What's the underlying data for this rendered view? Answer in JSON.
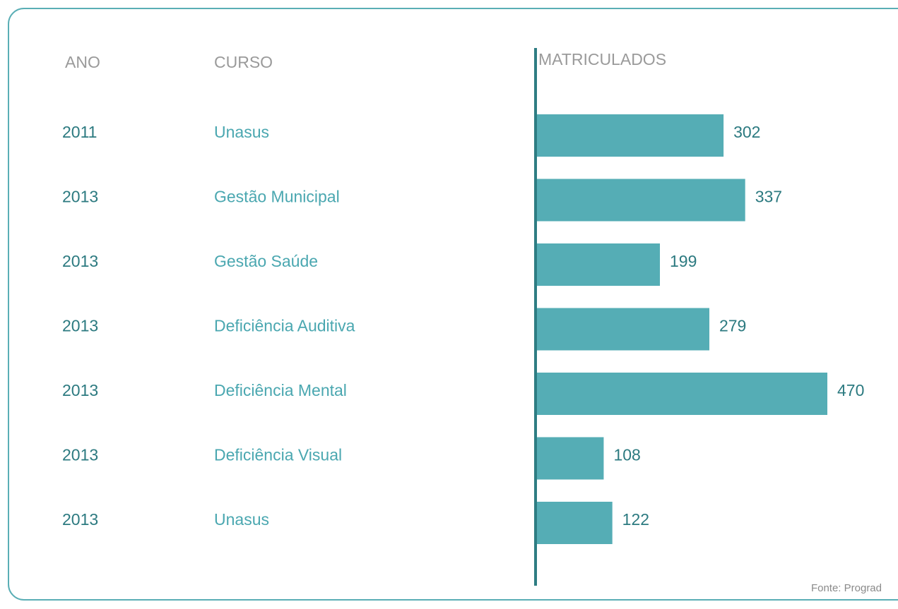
{
  "chart_data": {
    "type": "bar",
    "orientation": "horizontal",
    "headers": [
      "ANO",
      "CURSO",
      "MATRICULADOS"
    ],
    "years": [
      "2011",
      "2013",
      "2013",
      "2013",
      "2013",
      "2013",
      "2013"
    ],
    "categories": [
      "Unasus",
      "Gestão Municipal",
      "Gestão Saúde",
      "Deficiência Auditiva",
      "Deficiência Mental",
      "Deficiência Visual",
      "Unasus"
    ],
    "values": [
      302,
      337,
      199,
      279,
      470,
      108,
      122
    ],
    "color": "#55adb5",
    "source": "Fonte: Prograd"
  }
}
